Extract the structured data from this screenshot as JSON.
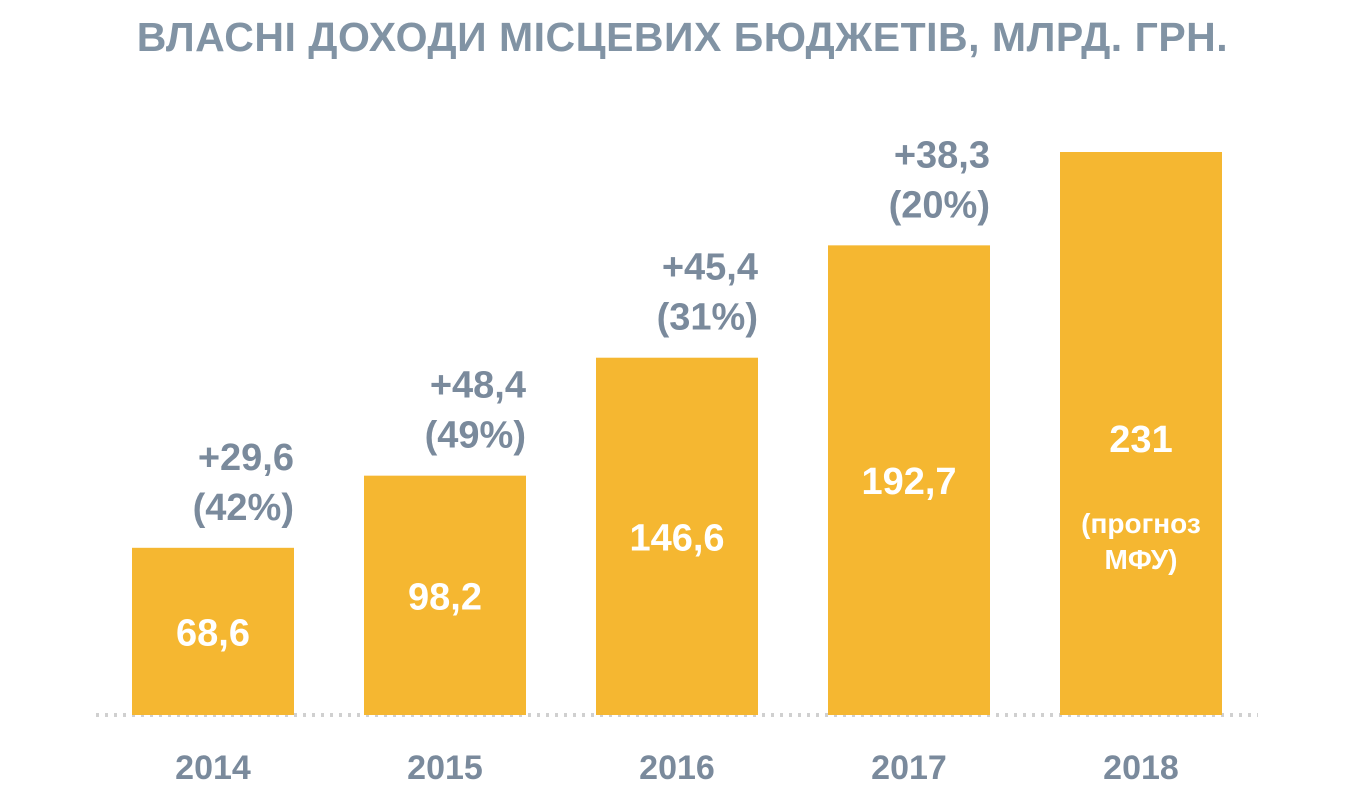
{
  "chart_data": {
    "type": "bar",
    "title": "ВЛАСНІ ДОХОДИ МІСЦЕВИХ БЮДЖЕТІВ, МЛРД. ГРН.",
    "categories": [
      "2014",
      "2015",
      "2016",
      "2017",
      "2018"
    ],
    "values": [
      68.6,
      98.2,
      146.6,
      192.7,
      231
    ],
    "value_labels": [
      "68,6",
      "98,2",
      "146,6",
      "192,7",
      "231"
    ],
    "value_notes": [
      "",
      "",
      "",
      "",
      "(прогноз МФУ)"
    ],
    "value_note_lines": [
      [],
      [],
      [],
      [],
      [
        "(прогноз",
        "МФУ)"
      ]
    ],
    "growth_labels": [
      [
        "+29,6",
        "(42%)"
      ],
      [
        "+48,4",
        "(49%)"
      ],
      [
        "+45,4",
        "(31%)"
      ],
      [
        "+38,3",
        "(20%)"
      ],
      []
    ],
    "xlabel": "",
    "ylabel": "",
    "ylim": [
      0,
      231
    ],
    "grid": false,
    "legend": "none",
    "colors": {
      "bar": "#f5b731",
      "title": "#8193a4",
      "label": "#7a8a9c",
      "value_text": "#ffffff",
      "baseline": "#d0d0d0"
    }
  }
}
